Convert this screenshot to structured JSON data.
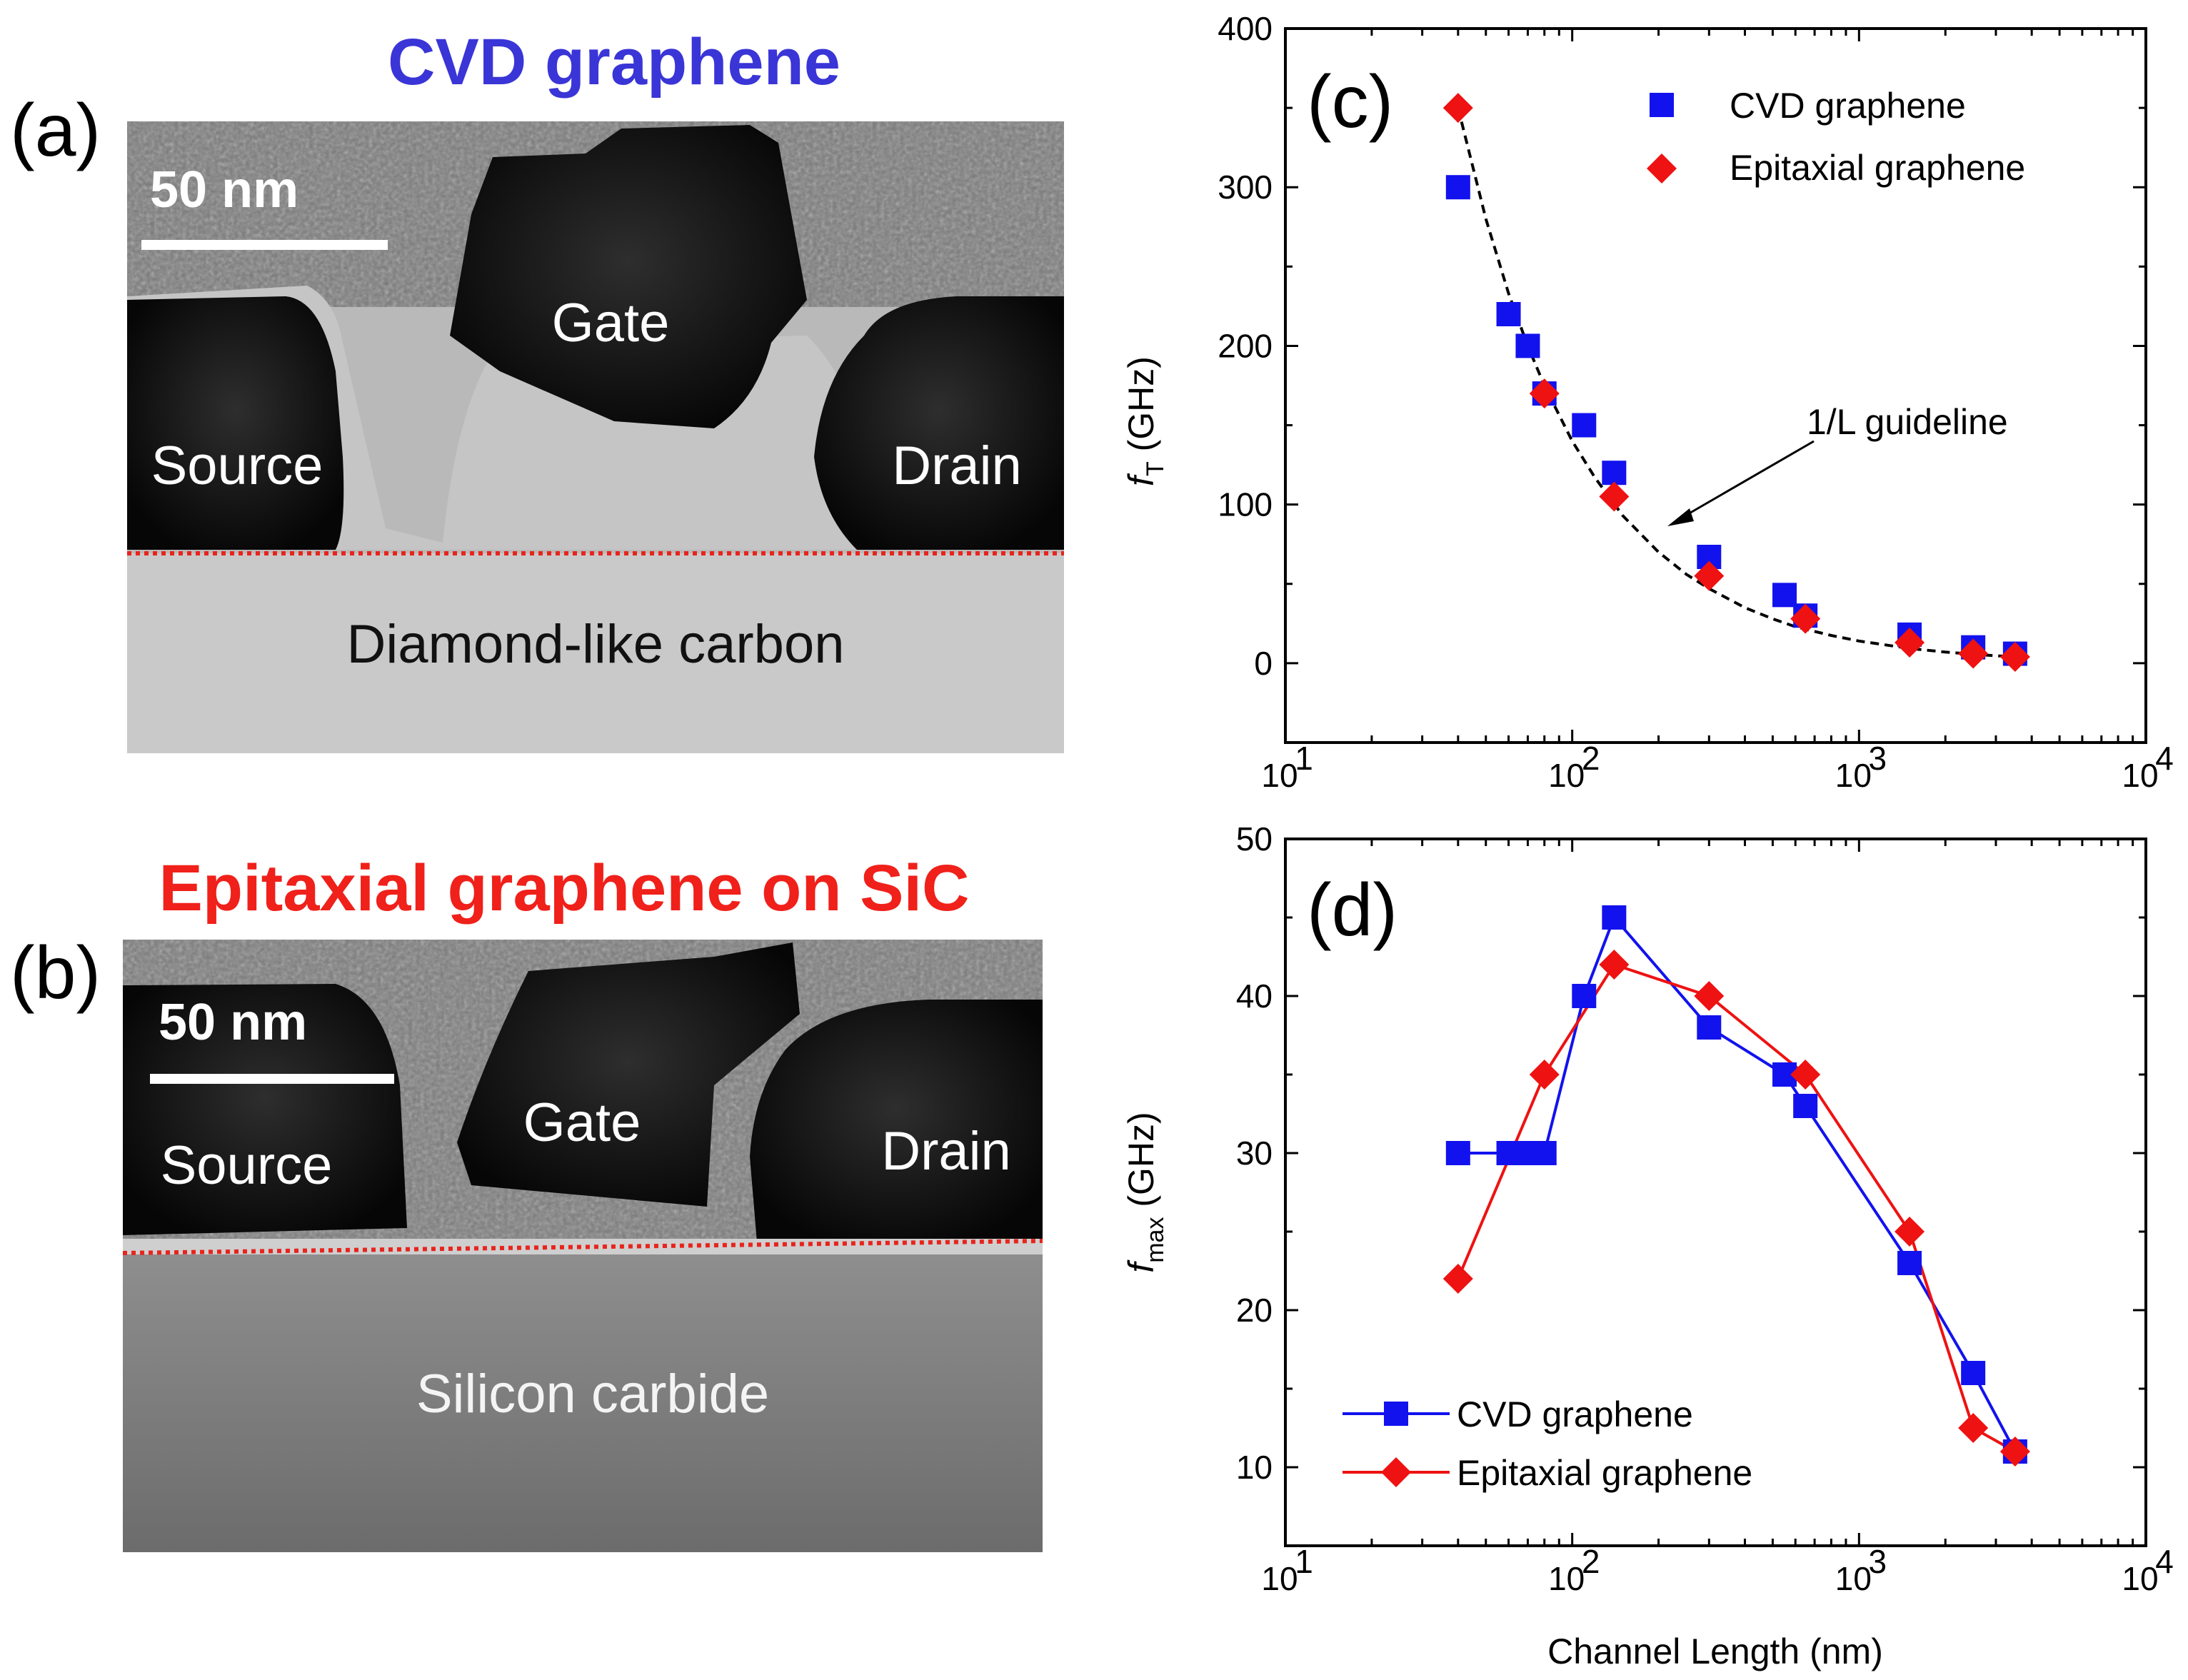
{
  "panels": {
    "a": {
      "letter": "(a)",
      "title": "CVD graphene",
      "title_color": "#3a35d6",
      "scale_bar": "50 nm",
      "labels": {
        "gate": "Gate",
        "source": "Source",
        "drain": "Drain",
        "substrate": "Diamond-like carbon"
      },
      "interface_color": "#e8241c"
    },
    "b": {
      "letter": "(b)",
      "title": "Epitaxial graphene on SiC",
      "title_color": "#f0201a",
      "scale_bar": "50 nm",
      "labels": {
        "gate": "Gate",
        "source": "Source",
        "drain": "Drain",
        "substrate": "Silicon carbide"
      },
      "interface_color": "#e8241c"
    }
  },
  "chart_data": [
    {
      "panel": "(c)",
      "type": "scatter",
      "xscale": "log",
      "xlim": [
        10,
        10000
      ],
      "ylim": [
        -50,
        400
      ],
      "yticks": [
        0,
        100,
        200,
        300,
        400
      ],
      "xticks": [
        "10",
        "10",
        "10",
        "10"
      ],
      "xtick_exponents": [
        "1",
        "2",
        "3",
        "4"
      ],
      "ylabel_main": "f",
      "ylabel_sub": "T",
      "ylabel_unit": " (GHz)",
      "xlabel": "",
      "legend_position": "top-right",
      "annotation": "1/L guideline",
      "series": [
        {
          "name": "CVD graphene",
          "marker": "square",
          "color": "#1212ee",
          "x": [
            40,
            60,
            70,
            80,
            110,
            140,
            300,
            550,
            650,
            1500,
            2500,
            3500
          ],
          "y": [
            300,
            220,
            200,
            170,
            150,
            120,
            67,
            43,
            30,
            18,
            10,
            6
          ]
        },
        {
          "name": "Epitaxial graphene",
          "marker": "diamond",
          "color": "#ee1212",
          "x": [
            40,
            80,
            140,
            300,
            650,
            1500,
            2500,
            3500
          ],
          "y": [
            350,
            170,
            105,
            55,
            28,
            13,
            6,
            4
          ]
        }
      ],
      "guideline": {
        "name": "1/L guideline",
        "color": "#000000",
        "x": [
          40,
          50,
          60,
          70,
          80,
          100,
          120,
          150,
          200,
          250,
          300,
          400,
          500,
          600,
          800,
          1000,
          1500,
          2000,
          2500,
          3000,
          3500
        ],
        "y": [
          350,
          280,
          233,
          200,
          175,
          140,
          117,
          93,
          70,
          56,
          47,
          35,
          28,
          23,
          17.5,
          14,
          9.3,
          7,
          5.6,
          4.7,
          4
        ]
      }
    },
    {
      "panel": "(d)",
      "type": "line",
      "xscale": "log",
      "xlim": [
        10,
        10000
      ],
      "ylim": [
        5,
        50
      ],
      "yticks": [
        10,
        20,
        30,
        40,
        50
      ],
      "xticks": [
        "10",
        "10",
        "10",
        "10"
      ],
      "xtick_exponents": [
        "1",
        "2",
        "3",
        "4"
      ],
      "ylabel_main": "f",
      "ylabel_sub": "max",
      "ylabel_unit": "  (GHz)",
      "xlabel": "Channel Length (nm)",
      "legend_position": "bottom-left",
      "series": [
        {
          "name": "CVD graphene",
          "marker": "square",
          "color": "#1212ee",
          "x": [
            40,
            60,
            70,
            80,
            110,
            140,
            300,
            550,
            650,
            1500,
            2500,
            3500
          ],
          "y": [
            30,
            30,
            30,
            30,
            40,
            45,
            38,
            35,
            33,
            23,
            16,
            11
          ]
        },
        {
          "name": "Epitaxial graphene",
          "marker": "diamond",
          "color": "#ee1212",
          "x": [
            40,
            80,
            140,
            300,
            650,
            1500,
            2500,
            3500
          ],
          "y": [
            22,
            35,
            42,
            40,
            35,
            25,
            12.5,
            11
          ]
        }
      ]
    }
  ]
}
